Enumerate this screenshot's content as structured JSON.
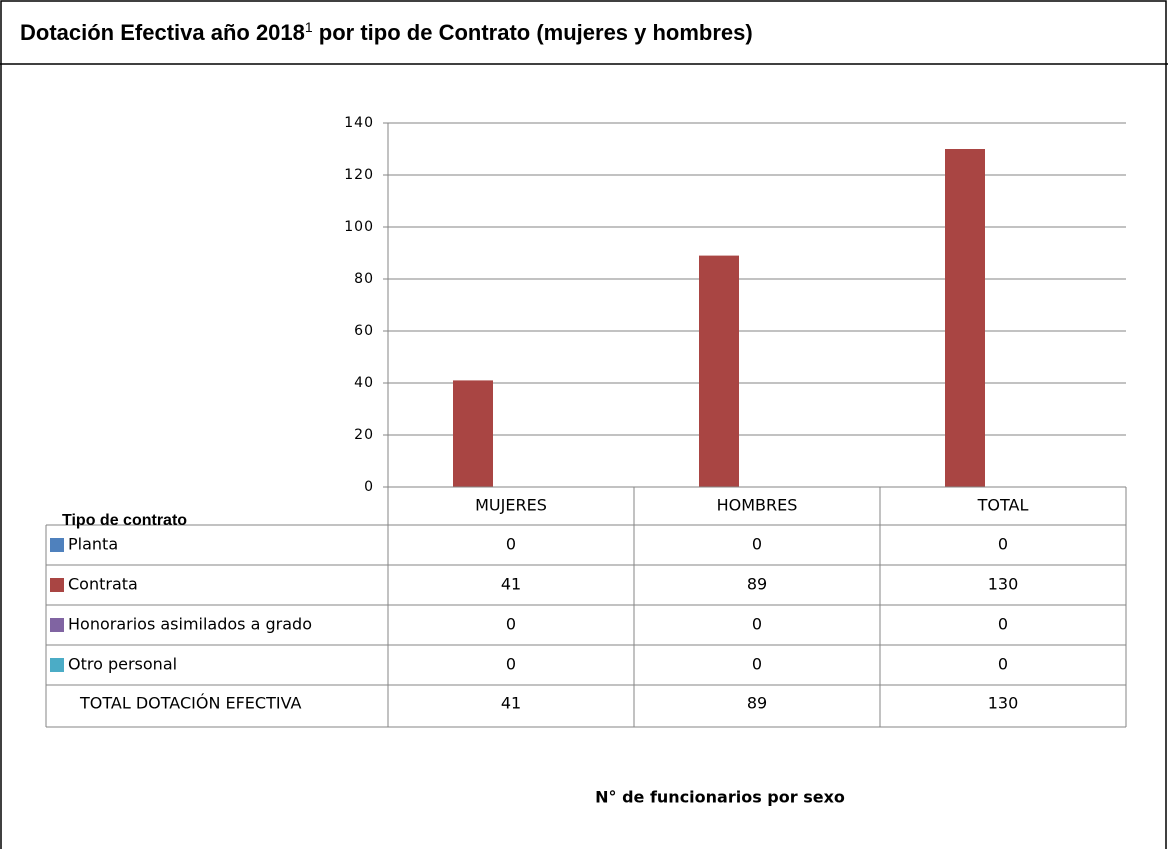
{
  "title_parts": [
    "Dotación Efectiva año 2018",
    "1",
    " por tipo de Contrato (mujeres y hombres)"
  ],
  "chart_data": {
    "type": "bar",
    "categories": [
      "MUJERES",
      "HOMBRES",
      "TOTAL"
    ],
    "series": [
      {
        "name": "Planta",
        "color": "#4f81bd",
        "values": [
          0,
          0,
          0
        ]
      },
      {
        "name": "Contrata",
        "color": "#a94543",
        "values": [
          41,
          89,
          130
        ]
      },
      {
        "name": "Honorarios asimilados a grado",
        "color": "#8064a2",
        "values": [
          0,
          0,
          0
        ]
      },
      {
        "name": "Otro personal",
        "color": "#4bacc6",
        "values": [
          0,
          0,
          0
        ]
      }
    ],
    "table_header": "Tipo de contrato",
    "table_total": {
      "name": "TOTAL DOTACIÓN EFECTIVA",
      "values": [
        41,
        89,
        130
      ]
    },
    "xlabel": "N° de funcionarios por sexo",
    "ylim": [
      0,
      140
    ],
    "yticks": [
      0,
      20,
      40,
      60,
      80,
      100,
      120,
      140
    ],
    "grid": true
  }
}
